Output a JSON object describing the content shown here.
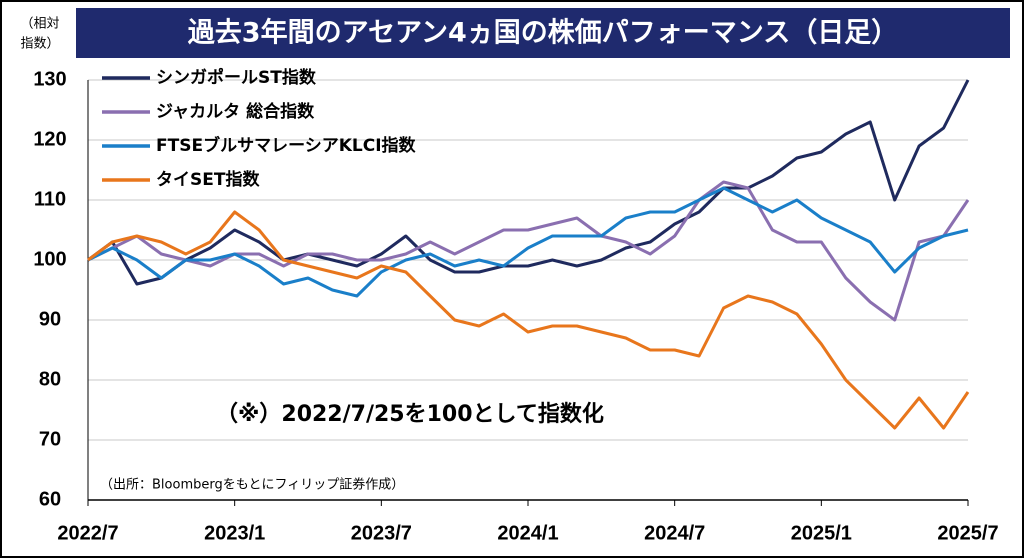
{
  "chart_data": {
    "type": "line",
    "title": "過去3年間のアセアン4ヵ国の株価パフォーマンス（日足）",
    "y_label": [
      "（相対",
      "指数）"
    ],
    "annotation": "（※）2022/7/25を100として指数化",
    "source": "（出所：Bloombergをもとにフィリップ証券作成）",
    "categories": [
      "2022/7",
      null,
      null,
      null,
      null,
      null,
      "2023/1",
      null,
      null,
      null,
      null,
      null,
      "2023/7",
      null,
      null,
      null,
      null,
      null,
      "2024/1",
      null,
      null,
      null,
      null,
      null,
      "2024/7",
      null,
      null,
      null,
      null,
      null,
      "2025/1",
      null,
      null,
      null,
      null,
      null,
      "2025/7"
    ],
    "ylim": [
      60,
      130
    ],
    "yticks": [
      60,
      70,
      80,
      90,
      100,
      110,
      120,
      130
    ],
    "grid": true,
    "series": [
      {
        "name": "シンガポールST指数",
        "color": "#1f2a5e",
        "values": [
          100,
          103,
          96,
          97,
          100,
          102,
          105,
          103,
          100,
          101,
          100,
          99,
          101,
          104,
          100,
          98,
          98,
          99,
          99,
          100,
          99,
          100,
          102,
          103,
          106,
          108,
          112,
          112,
          114,
          117,
          118,
          121,
          123,
          110,
          119,
          122,
          130
        ]
      },
      {
        "name": "ジャカルタ 総合指数",
        "color": "#8a6fb0",
        "values": [
          100,
          102,
          104,
          101,
          100,
          99,
          101,
          101,
          99,
          101,
          101,
          100,
          100,
          101,
          103,
          101,
          103,
          105,
          105,
          106,
          107,
          104,
          103,
          101,
          104,
          110,
          113,
          112,
          105,
          103,
          103,
          97,
          93,
          90,
          103,
          104,
          110
        ]
      },
      {
        "name": "FTSEブルサマレーシアKLCI指数",
        "color": "#1a7fc9",
        "values": [
          100,
          102,
          100,
          97,
          100,
          100,
          101,
          99,
          96,
          97,
          95,
          94,
          98,
          100,
          101,
          99,
          100,
          99,
          102,
          104,
          104,
          104,
          107,
          108,
          108,
          110,
          112,
          110,
          108,
          110,
          107,
          105,
          103,
          98,
          102,
          104,
          105
        ]
      },
      {
        "name": "タイSET指数",
        "color": "#e8761c",
        "values": [
          100,
          103,
          104,
          103,
          101,
          103,
          108,
          105,
          100,
          99,
          98,
          97,
          99,
          98,
          94,
          90,
          89,
          91,
          88,
          89,
          89,
          88,
          87,
          85,
          85,
          84,
          92,
          94,
          93,
          91,
          86,
          80,
          76,
          72,
          77,
          72,
          78
        ]
      }
    ]
  }
}
